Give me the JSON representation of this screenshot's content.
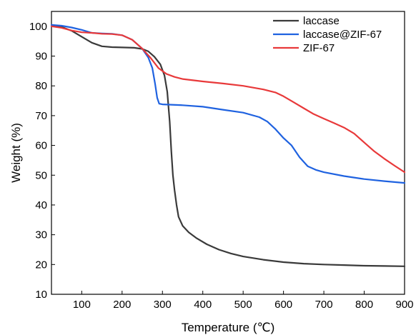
{
  "chart_data": {
    "type": "line",
    "title": "",
    "xlabel": "Temperature (℃)",
    "ylabel": "Weight (%)",
    "xlim": [
      25,
      900
    ],
    "ylim": [
      10,
      105
    ],
    "xticks": [
      100,
      200,
      300,
      400,
      500,
      600,
      700,
      800,
      900
    ],
    "yticks": [
      10,
      20,
      30,
      40,
      50,
      60,
      70,
      80,
      90,
      100
    ],
    "grid": false,
    "legend_position": "top-right",
    "series": [
      {
        "name": "laccase",
        "color": "#3a3a3a",
        "points": [
          [
            25,
            100
          ],
          [
            50,
            99.8
          ],
          [
            75,
            98.5
          ],
          [
            100,
            96.5
          ],
          [
            125,
            94.5
          ],
          [
            150,
            93.3
          ],
          [
            175,
            93
          ],
          [
            200,
            92.9
          ],
          [
            230,
            92.8
          ],
          [
            250,
            92.4
          ],
          [
            265,
            91.6
          ],
          [
            280,
            89.8
          ],
          [
            295,
            87.2
          ],
          [
            305,
            83.5
          ],
          [
            312,
            78
          ],
          [
            318,
            68
          ],
          [
            322,
            58
          ],
          [
            326,
            50
          ],
          [
            330,
            45
          ],
          [
            335,
            40
          ],
          [
            340,
            36
          ],
          [
            350,
            33
          ],
          [
            365,
            30.8
          ],
          [
            385,
            28.8
          ],
          [
            410,
            26.8
          ],
          [
            440,
            25
          ],
          [
            470,
            23.7
          ],
          [
            500,
            22.7
          ],
          [
            550,
            21.6
          ],
          [
            600,
            20.8
          ],
          [
            650,
            20.3
          ],
          [
            700,
            20
          ],
          [
            750,
            19.8
          ],
          [
            800,
            19.6
          ],
          [
            850,
            19.5
          ],
          [
            900,
            19.4
          ]
        ]
      },
      {
        "name": "laccase@ZIF-67",
        "color": "#1f62e0",
        "points": [
          [
            25,
            100.5
          ],
          [
            50,
            100.2
          ],
          [
            75,
            99.6
          ],
          [
            100,
            98.8
          ],
          [
            125,
            97.8
          ],
          [
            150,
            97.6
          ],
          [
            175,
            97.5
          ],
          [
            200,
            97
          ],
          [
            225,
            95.5
          ],
          [
            250,
            92.5
          ],
          [
            265,
            89.5
          ],
          [
            275,
            86
          ],
          [
            282,
            80.5
          ],
          [
            287,
            76
          ],
          [
            292,
            74
          ],
          [
            300,
            73.8
          ],
          [
            350,
            73.5
          ],
          [
            400,
            73
          ],
          [
            450,
            72
          ],
          [
            500,
            71
          ],
          [
            540,
            69.5
          ],
          [
            560,
            68
          ],
          [
            580,
            65.5
          ],
          [
            600,
            62.5
          ],
          [
            620,
            60
          ],
          [
            640,
            56
          ],
          [
            660,
            53
          ],
          [
            680,
            51.8
          ],
          [
            700,
            51
          ],
          [
            750,
            49.7
          ],
          [
            800,
            48.7
          ],
          [
            850,
            48
          ],
          [
            900,
            47.4
          ]
        ]
      },
      {
        "name": "ZIF-67",
        "color": "#e8393a",
        "points": [
          [
            25,
            100
          ],
          [
            50,
            99.5
          ],
          [
            75,
            98.6
          ],
          [
            100,
            98
          ],
          [
            125,
            97.8
          ],
          [
            150,
            97.5
          ],
          [
            175,
            97.4
          ],
          [
            200,
            97
          ],
          [
            225,
            95.5
          ],
          [
            250,
            92.5
          ],
          [
            270,
            89.5
          ],
          [
            290,
            86
          ],
          [
            310,
            84
          ],
          [
            330,
            83
          ],
          [
            350,
            82.3
          ],
          [
            400,
            81.5
          ],
          [
            450,
            80.8
          ],
          [
            500,
            80
          ],
          [
            550,
            78.8
          ],
          [
            580,
            77.8
          ],
          [
            600,
            76.5
          ],
          [
            625,
            74.5
          ],
          [
            650,
            72.5
          ],
          [
            675,
            70.5
          ],
          [
            700,
            69
          ],
          [
            725,
            67.5
          ],
          [
            750,
            66
          ],
          [
            775,
            64
          ],
          [
            800,
            61
          ],
          [
            825,
            58
          ],
          [
            850,
            55.5
          ],
          [
            875,
            53.2
          ],
          [
            900,
            51
          ]
        ]
      }
    ]
  }
}
